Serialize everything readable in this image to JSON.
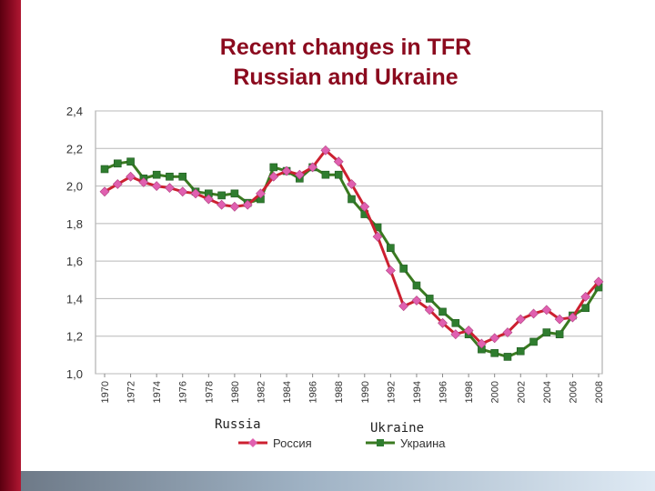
{
  "slide": {
    "title_line1": "Recent changes in TFR",
    "title_line2": "Russian and Ukraine",
    "annotation_russia": "Russia",
    "annotation_ukraine": "Ukraine"
  },
  "chart_data": {
    "type": "line",
    "title": "",
    "xlabel": "",
    "ylabel": "",
    "ylim": [
      1.0,
      2.4
    ],
    "yticks": [
      "1,0",
      "1,2",
      "1,4",
      "1,6",
      "1,8",
      "2,0",
      "2,2",
      "2,4"
    ],
    "x_tick_labels": [
      "1970",
      "1972",
      "1974",
      "1976",
      "1978",
      "1980",
      "1982",
      "1984",
      "1986",
      "1988",
      "1990",
      "1992",
      "1994",
      "1996",
      "1998",
      "2000",
      "2002",
      "2004",
      "2006",
      "2008"
    ],
    "grid": true,
    "legend_position": "bottom",
    "x": [
      1970,
      1971,
      1972,
      1973,
      1974,
      1975,
      1976,
      1977,
      1978,
      1979,
      1980,
      1981,
      1982,
      1983,
      1984,
      1985,
      1986,
      1987,
      1988,
      1989,
      1990,
      1991,
      1992,
      1993,
      1994,
      1995,
      1996,
      1997,
      1998,
      1999,
      2000,
      2001,
      2002,
      2003,
      2004,
      2005,
      2006,
      2007,
      2008
    ],
    "series": [
      {
        "name": "Россия",
        "color": "#cc2030",
        "marker_color": "#e060b0",
        "marker": "diamond",
        "values": [
          1.97,
          2.01,
          2.05,
          2.02,
          2.0,
          1.99,
          1.97,
          1.96,
          1.93,
          1.9,
          1.89,
          1.9,
          1.96,
          2.05,
          2.08,
          2.06,
          2.1,
          2.19,
          2.13,
          2.01,
          1.89,
          1.73,
          1.55,
          1.36,
          1.39,
          1.34,
          1.27,
          1.21,
          1.23,
          1.16,
          1.19,
          1.22,
          1.29,
          1.32,
          1.34,
          1.29,
          1.3,
          1.41,
          1.49
        ]
      },
      {
        "name": "Украина",
        "color": "#3a7a20",
        "marker_color": "#2f7d2f",
        "marker": "square",
        "values": [
          2.09,
          2.12,
          2.13,
          2.04,
          2.06,
          2.05,
          2.05,
          1.97,
          1.96,
          1.95,
          1.96,
          1.91,
          1.93,
          2.1,
          2.08,
          2.04,
          2.1,
          2.06,
          2.06,
          1.93,
          1.85,
          1.78,
          1.67,
          1.56,
          1.47,
          1.4,
          1.33,
          1.27,
          1.21,
          1.13,
          1.11,
          1.09,
          1.12,
          1.17,
          1.22,
          1.21,
          1.31,
          1.35,
          1.46
        ]
      }
    ]
  }
}
